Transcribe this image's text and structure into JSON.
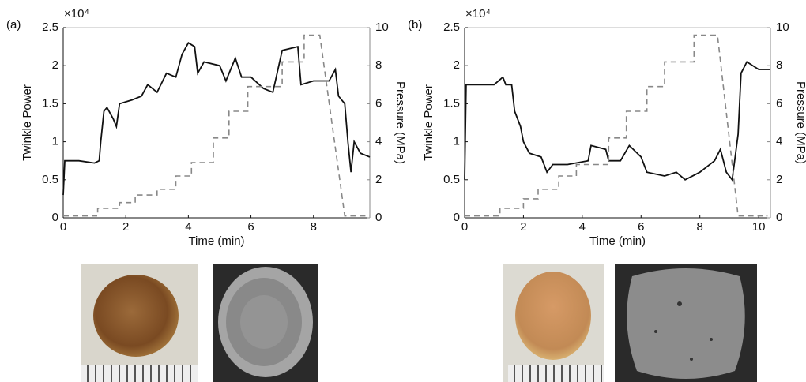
{
  "chart_data": [
    {
      "type": "line",
      "panel_label": "(a)",
      "xlabel": "Time (min)",
      "ylabel": "Twinkle Power",
      "y_multiplier": "×10⁴",
      "y2label": "Pressure (MPa)",
      "xlim": [
        0,
        9.8
      ],
      "xticks": [
        0,
        2,
        4,
        6,
        8
      ],
      "ylim": [
        0,
        2.5
      ],
      "yticks": [
        0,
        0.5,
        1,
        1.5,
        2,
        2.5
      ],
      "y2lim": [
        0,
        10
      ],
      "y2ticks": [
        0,
        2,
        4,
        6,
        8,
        10
      ],
      "y2color": "#888888",
      "series": [
        {
          "color": "#111111",
          "line_style": "solid",
          "axis": "y",
          "x": [
            0,
            0.05,
            0.5,
            1.0,
            1.15,
            1.2,
            1.3,
            1.4,
            1.6,
            1.7,
            1.8,
            2.2,
            2.5,
            2.7,
            3.0,
            3.3,
            3.6,
            3.8,
            4.0,
            4.2,
            4.3,
            4.5,
            5.0,
            5.2,
            5.5,
            5.7,
            6.0,
            6.4,
            6.7,
            7.0,
            7.5,
            7.6,
            8.0,
            8.5,
            8.7,
            8.8,
            9.0,
            9.1,
            9.2,
            9.3,
            9.5,
            9.8
          ],
          "values": [
            0.3,
            0.75,
            0.75,
            0.72,
            0.75,
            1.0,
            1.4,
            1.45,
            1.3,
            1.2,
            1.5,
            1.55,
            1.6,
            1.75,
            1.65,
            1.9,
            1.85,
            2.15,
            2.3,
            2.25,
            1.9,
            2.05,
            2.0,
            1.8,
            2.1,
            1.85,
            1.85,
            1.7,
            1.65,
            2.2,
            2.25,
            1.75,
            1.8,
            1.8,
            1.95,
            1.6,
            1.5,
            1.0,
            0.6,
            1.0,
            0.85,
            0.8
          ]
        },
        {
          "color": "#888888",
          "line_style": "dashed",
          "axis": "y2",
          "x": [
            0,
            1.1,
            1.1,
            1.8,
            1.8,
            2.3,
            2.3,
            3.0,
            3.0,
            3.6,
            3.6,
            4.1,
            4.1,
            4.8,
            4.8,
            5.3,
            5.3,
            5.9,
            5.9,
            7.0,
            7.0,
            7.7,
            7.7,
            8.2,
            9.0,
            9.8
          ],
          "values": [
            0.1,
            0.1,
            0.5,
            0.5,
            0.8,
            0.8,
            1.2,
            1.2,
            1.5,
            1.5,
            2.2,
            2.2,
            2.9,
            2.9,
            4.2,
            4.2,
            5.6,
            5.6,
            6.9,
            6.9,
            8.2,
            8.2,
            9.6,
            9.6,
            0.1,
            0.1
          ]
        }
      ]
    },
    {
      "type": "line",
      "panel_label": "(b)",
      "xlabel": "Time (min)",
      "ylabel": "Twinkle Power",
      "y_multiplier": "×10⁴",
      "y2label": "Pressure (MPa)",
      "xlim": [
        0,
        10.4
      ],
      "xticks": [
        0,
        2,
        4,
        6,
        8,
        10
      ],
      "ylim": [
        0,
        2.5
      ],
      "yticks": [
        0,
        0.5,
        1,
        1.5,
        2,
        2.5
      ],
      "y2lim": [
        0,
        10
      ],
      "y2ticks": [
        0,
        2,
        4,
        6,
        8,
        10
      ],
      "y2color": "#888888",
      "series": [
        {
          "color": "#111111",
          "line_style": "solid",
          "axis": "y",
          "x": [
            0,
            0.05,
            1.0,
            1.3,
            1.4,
            1.6,
            1.7,
            1.9,
            2.0,
            2.2,
            2.6,
            2.8,
            3.0,
            3.5,
            4.2,
            4.3,
            4.8,
            4.9,
            5.3,
            5.6,
            6.0,
            6.2,
            6.8,
            7.2,
            7.5,
            8.0,
            8.5,
            8.7,
            8.9,
            9.1,
            9.3,
            9.4,
            9.6,
            10.0,
            10.4
          ],
          "values": [
            0.5,
            1.75,
            1.75,
            1.85,
            1.75,
            1.75,
            1.4,
            1.2,
            1.0,
            0.85,
            0.8,
            0.6,
            0.7,
            0.7,
            0.75,
            0.95,
            0.9,
            0.75,
            0.75,
            0.95,
            0.8,
            0.6,
            0.55,
            0.6,
            0.5,
            0.6,
            0.75,
            0.9,
            0.6,
            0.5,
            1.1,
            1.9,
            2.05,
            1.95,
            1.95
          ]
        },
        {
          "color": "#888888",
          "line_style": "dashed",
          "axis": "y2",
          "x": [
            0,
            1.2,
            1.2,
            2.0,
            2.0,
            2.5,
            2.5,
            3.2,
            3.2,
            3.8,
            3.8,
            4.9,
            4.9,
            5.5,
            5.5,
            6.2,
            6.2,
            6.8,
            6.8,
            7.8,
            7.8,
            8.6,
            9.3,
            10.3
          ],
          "values": [
            0.1,
            0.1,
            0.5,
            0.5,
            1.0,
            1.0,
            1.5,
            1.5,
            2.2,
            2.2,
            2.8,
            2.8,
            4.2,
            4.2,
            5.6,
            5.6,
            6.9,
            6.9,
            8.2,
            8.2,
            9.6,
            9.6,
            0.1,
            0.1
          ]
        }
      ]
    }
  ]
}
